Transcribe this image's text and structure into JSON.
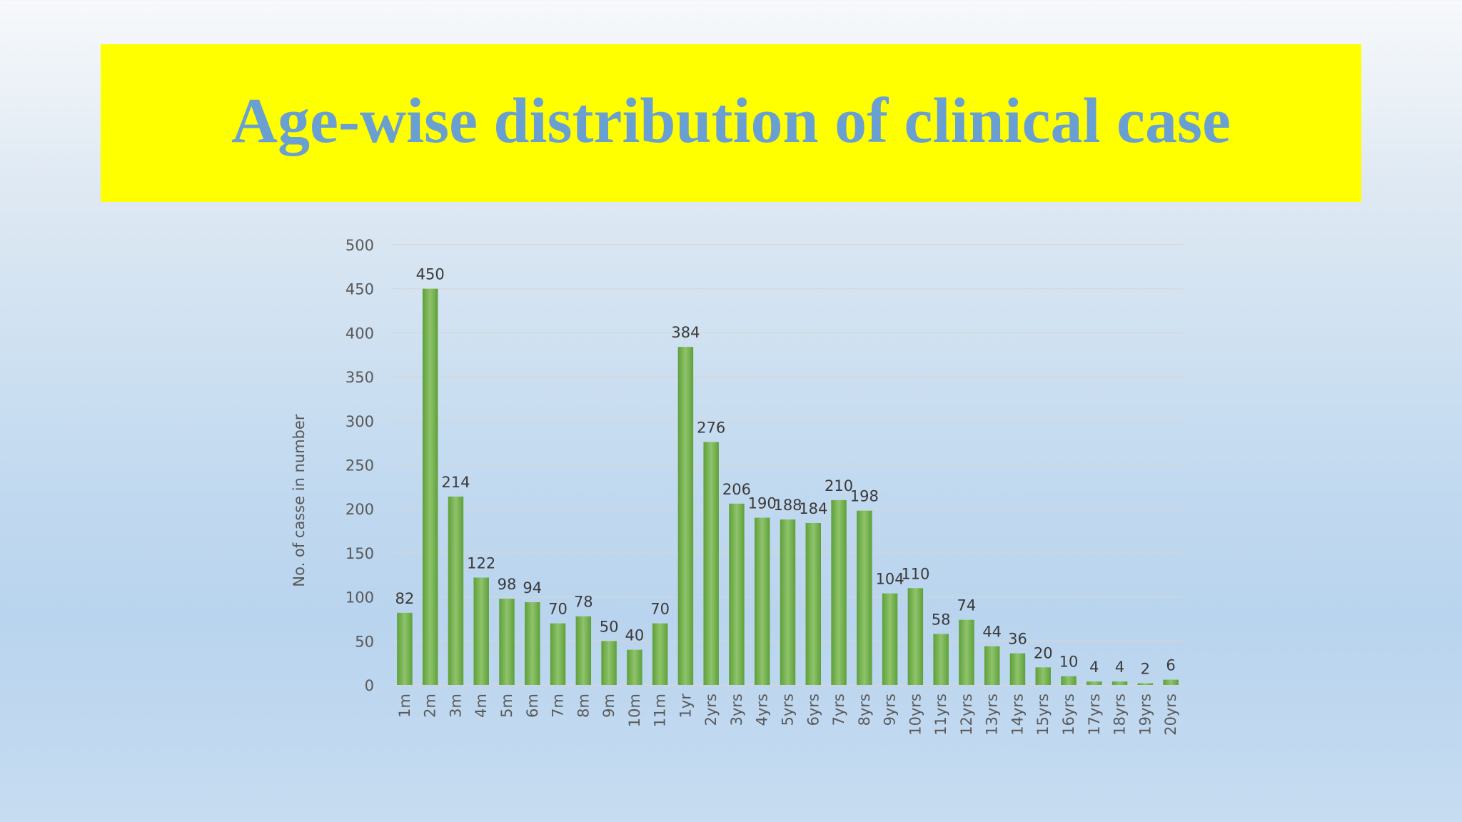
{
  "title": "Age-wise distribution of clinical case",
  "colors": {
    "banner": "#ffff00",
    "title": "#6a9fd2",
    "bar_light": "#8fc36b",
    "bar_dark": "#5ea03a",
    "axis_text": "#595959",
    "label_text": "#3a3a3a",
    "grid": "#d6d6d6"
  },
  "chart_data": {
    "type": "bar",
    "title": "",
    "xlabel": "",
    "ylabel": "No. of casse in number",
    "ylim": [
      0,
      500
    ],
    "yticks": [
      0,
      50,
      100,
      150,
      200,
      250,
      300,
      350,
      400,
      450,
      500
    ],
    "grid": true,
    "categories": [
      "1m",
      "2m",
      "3m",
      "4m",
      "5m",
      "6m",
      "7m",
      "8m",
      "9m",
      "10m",
      "11m",
      "1yr",
      "2yrs",
      "3yrs",
      "4yrs",
      "5yrs",
      "6yrs",
      "7yrs",
      "8yrs",
      "9yrs",
      "10yrs",
      "11yrs",
      "12yrs",
      "13yrs",
      "14yrs",
      "15yrs",
      "16yrs",
      "17yrs",
      "18yrs",
      "19yrs",
      "20yrs"
    ],
    "values": [
      82,
      450,
      214,
      122,
      98,
      94,
      70,
      78,
      50,
      40,
      70,
      384,
      276,
      206,
      190,
      188,
      184,
      210,
      198,
      104,
      110,
      58,
      74,
      44,
      36,
      20,
      10,
      4,
      4,
      2,
      6
    ]
  }
}
